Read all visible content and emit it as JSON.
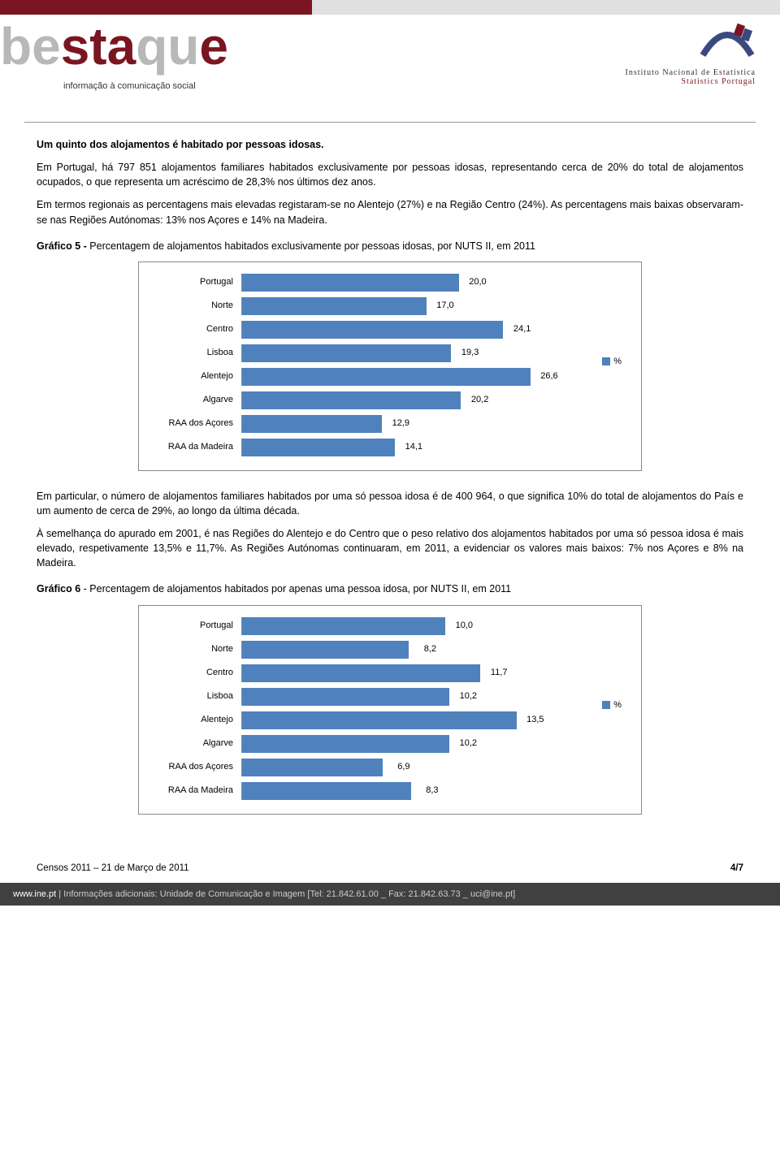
{
  "header": {
    "logo_sub": "informação à comunicação social",
    "ine_line1": "Instituto Nacional de Estatística",
    "ine_line2": "Statistics Portugal"
  },
  "section1": {
    "title": "Um quinto dos alojamentos é habitado por pessoas idosas.",
    "p1": "Em Portugal, há 797 851 alojamentos familiares habitados exclusivamente por pessoas idosas, representando cerca de 20% do total de alojamentos ocupados, o que representa um acréscimo de 28,3% nos últimos dez anos.",
    "p2": "Em termos regionais as percentagens mais elevadas registaram-se no Alentejo (27%) e na Região Centro (24%). As percentagens mais baixas observaram-se nas Regiões Autónomas: 13% nos Açores e 14% na Madeira."
  },
  "chart5": {
    "title_prefix": "Gráfico 5 - ",
    "title_rest": "Percentagem de alojamentos habitados exclusivamente por pessoas idosas, por NUTS II, em 2011",
    "categories": [
      "Portugal",
      "Norte",
      "Centro",
      "Lisboa",
      "Alentejo",
      "Algarve",
      "RAA dos Açores",
      "RAA da Madeira"
    ],
    "values": [
      20.0,
      17.0,
      24.1,
      19.3,
      26.6,
      20.2,
      12.9,
      14.1
    ],
    "value_labels": [
      "20,0",
      "17,0",
      "24,1",
      "19,3",
      "26,6",
      "20,2",
      "12,9",
      "14,1"
    ],
    "bar_color": "#4f81bd",
    "xmax": 30,
    "legend_label": "%",
    "legend_color": "#4f81bd"
  },
  "section2": {
    "p1": "Em particular, o número de alojamentos familiares habitados por uma só pessoa idosa é de 400 964, o que significa 10% do total de alojamentos do País e um aumento de cerca de 29%, ao longo da última década.",
    "p2": "À semelhança do apurado em 2001, é nas Regiões do Alentejo e do Centro que o peso relativo dos alojamentos habitados por uma só pessoa idosa é mais elevado, respetivamente 13,5% e 11,7%. As Regiões Autónomas continuaram, em 2011, a evidenciar os valores mais baixos: 7% nos Açores e 8% na Madeira."
  },
  "chart6": {
    "title_prefix": "Gráfico 6",
    "title_rest": " - Percentagem de alojamentos habitados por apenas uma pessoa idosa, por NUTS II, em 2011",
    "categories": [
      "Portugal",
      "Norte",
      "Centro",
      "Lisboa",
      "Alentejo",
      "Algarve",
      "RAA dos Açores",
      "RAA da Madeira"
    ],
    "values": [
      10.0,
      8.2,
      11.7,
      10.2,
      13.5,
      10.2,
      6.9,
      8.3
    ],
    "value_labels": [
      "10,0",
      "8,2",
      "11,7",
      "10,2",
      "13,5",
      "10,2",
      "6,9",
      "8,3"
    ],
    "bar_color": "#4f81bd",
    "xmax": 16,
    "legend_label": "%",
    "legend_color": "#4f81bd"
  },
  "footer": {
    "note": "Censos 2011 – 21 de Março de 2011",
    "page": "4/7",
    "bar_site": "www.ine.pt",
    "bar_text": " | Informações adicionais: Unidade de Comunicação e Imagem [Tel: 21.842.61.00 _ Fax: 21.842.63.73 _ uci@ine.pt]"
  }
}
